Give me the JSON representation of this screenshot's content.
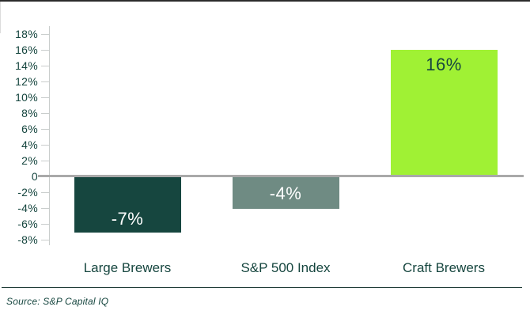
{
  "chart_data": {
    "type": "bar",
    "title": "",
    "categories": [
      "Large Brewers",
      "S&P 500 Index",
      "Craft Brewers"
    ],
    "values": [
      -7,
      -4,
      16
    ],
    "bar_labels": [
      "-7%",
      "-4%",
      "16%"
    ],
    "bar_colors": [
      "#16463f",
      "#6f8b83",
      "#a0f134"
    ],
    "bar_label_colors": [
      "#ffffff",
      "#ffffff",
      "#16463f"
    ],
    "bar_label_positions": [
      "bottom",
      "center",
      "top"
    ],
    "xlabel": "",
    "ylabel": "",
    "ylim": [
      -8,
      18
    ],
    "grid": false,
    "legend": false,
    "y_axis_ticks": [
      {
        "label": "18%",
        "value": 18
      },
      {
        "label": "16%",
        "value": 16
      },
      {
        "label": "14%",
        "value": 14
      },
      {
        "label": "12%",
        "value": 12
      },
      {
        "label": "10%",
        "value": 10
      },
      {
        "label": "8%",
        "value": 8
      },
      {
        "label": "6%",
        "value": 6
      },
      {
        "label": "4%",
        "value": 4
      },
      {
        "label": "2%",
        "value": 2
      },
      {
        "label": "0",
        "value": 0
      },
      {
        "label": "-2%",
        "value": -2
      },
      {
        "label": "-4%",
        "value": -4
      },
      {
        "label": "-6%",
        "value": -6
      },
      {
        "label": "-8%",
        "value": -8
      }
    ]
  },
  "source_note": "Source: S&P Capital IQ",
  "colors": {
    "accent_dark_teal": "#16463f",
    "accent_sage": "#6f8b83",
    "accent_lime": "#a0f134",
    "zero_line": "#a9a9a9",
    "axis_line": "#c9cdcc",
    "top_border": "#2b2b2b"
  }
}
